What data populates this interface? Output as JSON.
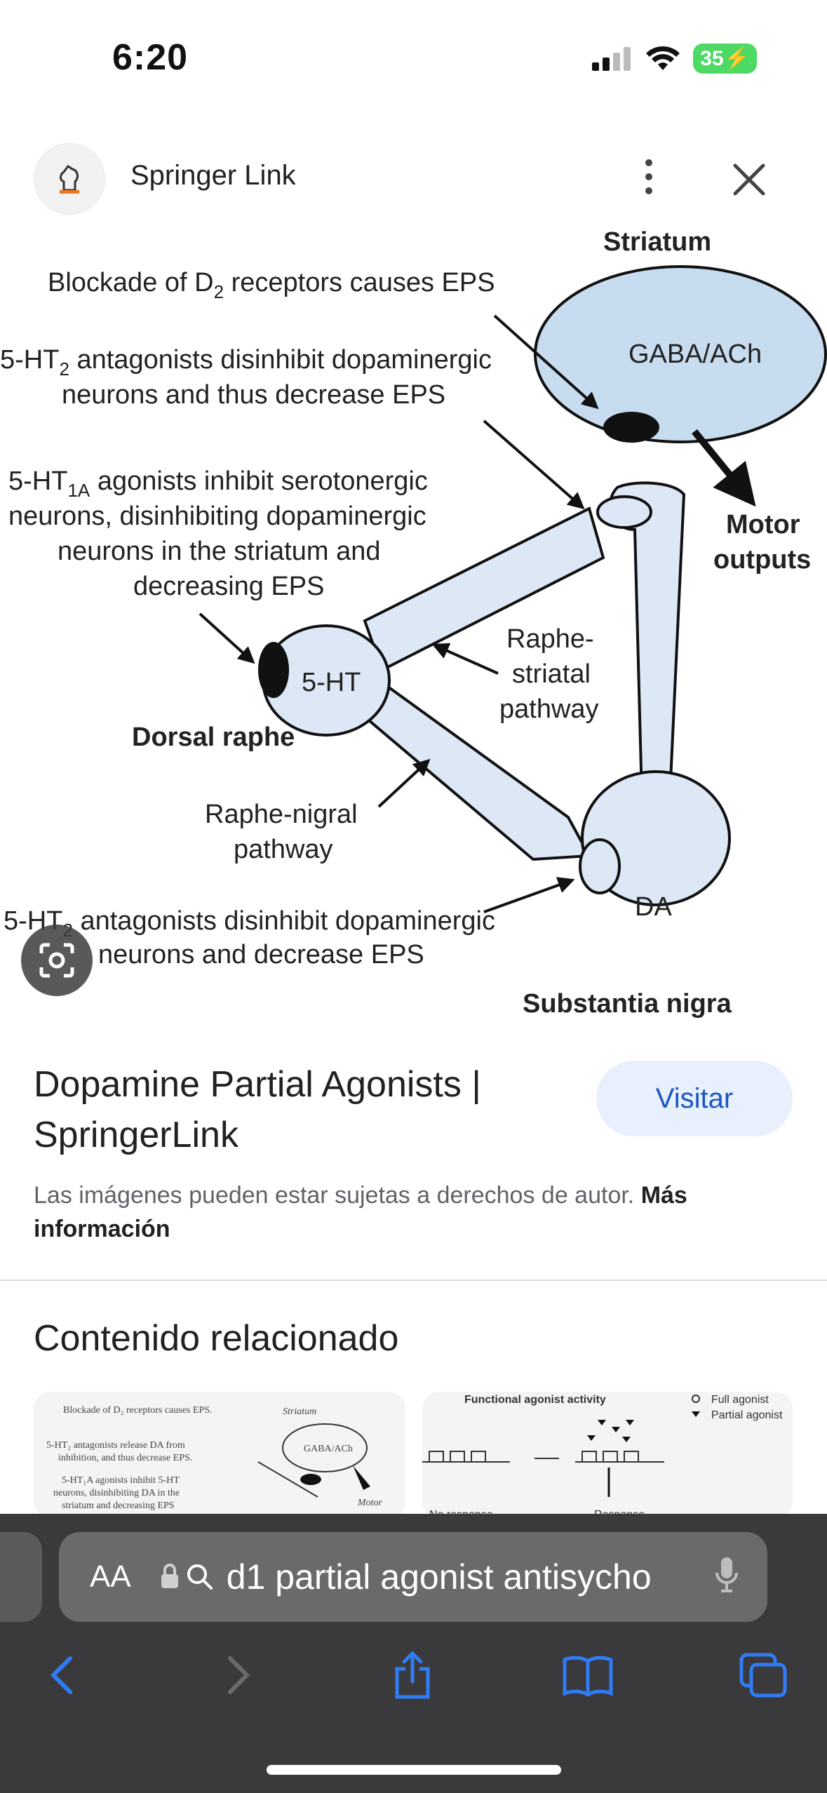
{
  "status_bar": {
    "time": "6:20",
    "battery": "35"
  },
  "source": {
    "site_name": "Springer Link"
  },
  "figure": {
    "labels": {
      "striatum": "Striatum",
      "gaba_ach": "GABA/ACh",
      "motor_outputs_1": "Motor",
      "motor_outputs_2": "outputs",
      "blockade": "Blockade of D",
      "blockade_sub": "2",
      "blockade_rest": " receptors causes EPS",
      "ht2_line1_a": "5-HT",
      "ht2_line1_sub": "2",
      "ht2_line1_b": " antagonists disinhibit dopaminergic",
      "ht2_line2": "neurons and thus decrease EPS",
      "ht1a_line1_a": "5-HT",
      "ht1a_line1_sub": "1A",
      "ht1a_line1_b": " agonists inhibit serotonergic",
      "ht1a_line2": "neurons, disinhibiting dopaminergic",
      "ht1a_line3": "neurons in the striatum and",
      "ht1a_line4": "decreasing EPS",
      "five_ht": "5-HT",
      "dorsal_raphe": "Dorsal raphe",
      "raphe_striatal_1": "Raphe-",
      "raphe_striatal_2": "striatal",
      "raphe_striatal_3": "pathway",
      "raphe_nigral_1": "Raphe-nigral",
      "raphe_nigral_2": "pathway",
      "ht2b_line1_a": "5-HT",
      "ht2b_line1_sub": "2",
      "ht2b_line1_b": " antagonists disinhibit dopaminergic",
      "ht2b_line2": "neurons and decrease EPS",
      "da": "DA",
      "substantia_nigra": "Substantia nigra"
    }
  },
  "result": {
    "title": "Dopamine Partial Agonists | SpringerLink",
    "visit_label": "Visitar",
    "copyright_text": "Las imágenes pueden estar sujetas a derechos de autor.",
    "more_info": "Más información"
  },
  "related": {
    "heading": "Contenido relacionado",
    "thumb1": {
      "line1": "Blockade of D₂ receptors causes EPS.",
      "striatum": "Striatum",
      "line2": "5-HT₂ antagonists release DA from",
      "line3": "inhibition, and thus decrease EPS.",
      "gaba": "GABA/ACh",
      "line4": "5-HT₁A agonists inhibit 5-HT",
      "line5": "neurons, disinhibiting DA in the",
      "line6": "striatum and decreasing EPS",
      "motor": "Motor"
    },
    "thumb2": {
      "title": "Functional agonist activity",
      "legend_full": "Full agonist",
      "legend_partial": "Partial agonist",
      "no_response": "No response",
      "response": "Response"
    }
  },
  "browser": {
    "aa_label": "AA",
    "url_text": "d1 partial agonist antisycho"
  }
}
